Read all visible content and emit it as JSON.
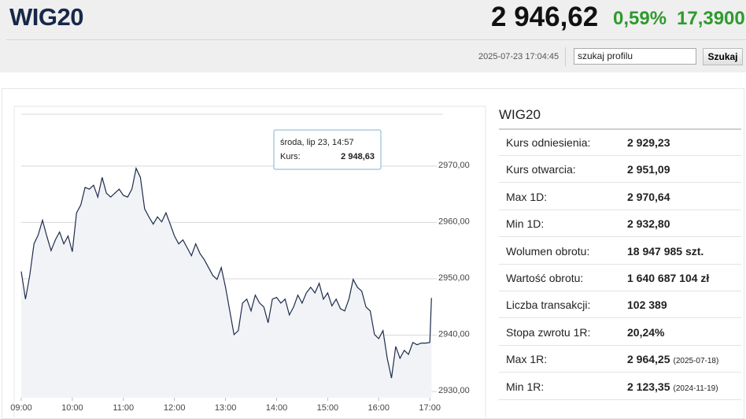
{
  "header": {
    "title": "WIG20",
    "price": "2 946,62",
    "change_pct": "0,59%",
    "change": "17,3900",
    "timestamp": "2025-07-23 17:04:45",
    "search_placeholder": "szukaj profilu",
    "search_button": "Szukaj"
  },
  "chart_data": {
    "type": "line",
    "color": "#1e2c4c",
    "area_color": "#f1f3f6",
    "grid": true,
    "x": [
      "09:00",
      "09:05",
      "09:10",
      "09:15",
      "09:20",
      "09:25",
      "09:30",
      "09:35",
      "09:40",
      "09:45",
      "09:50",
      "09:55",
      "10:00",
      "10:05",
      "10:10",
      "10:15",
      "10:20",
      "10:25",
      "10:30",
      "10:35",
      "10:40",
      "10:45",
      "10:50",
      "10:55",
      "11:00",
      "11:05",
      "11:10",
      "11:15",
      "11:20",
      "11:25",
      "11:30",
      "11:35",
      "11:40",
      "11:45",
      "11:50",
      "11:55",
      "12:00",
      "12:05",
      "12:10",
      "12:15",
      "12:20",
      "12:25",
      "12:30",
      "12:35",
      "12:40",
      "12:45",
      "12:50",
      "12:55",
      "13:00",
      "13:05",
      "13:10",
      "13:15",
      "13:20",
      "13:25",
      "13:30",
      "13:35",
      "13:40",
      "13:45",
      "13:50",
      "13:55",
      "14:00",
      "14:05",
      "14:10",
      "14:15",
      "14:20",
      "14:25",
      "14:30",
      "14:35",
      "14:40",
      "14:45",
      "14:50",
      "14:55",
      "15:00",
      "15:05",
      "15:10",
      "15:15",
      "15:20",
      "15:25",
      "15:30",
      "15:35",
      "15:40",
      "15:45",
      "15:50",
      "15:55",
      "16:00",
      "16:05",
      "16:10",
      "16:15",
      "16:20",
      "16:25",
      "16:30",
      "16:35",
      "16:40",
      "16:45",
      "16:50",
      "16:55",
      "17:00",
      "17:02"
    ],
    "values": [
      2951.3,
      2946.4,
      2950.6,
      2956.2,
      2957.8,
      2960.4,
      2957.6,
      2955.0,
      2956.9,
      2958.3,
      2956.2,
      2957.6,
      2954.8,
      2961.7,
      2963.1,
      2966.2,
      2965.9,
      2966.6,
      2964.5,
      2968.0,
      2965.2,
      2964.5,
      2965.2,
      2965.9,
      2964.8,
      2964.5,
      2965.9,
      2969.6,
      2968.0,
      2962.4,
      2961.0,
      2959.7,
      2961.0,
      2960.1,
      2961.7,
      2959.7,
      2957.6,
      2956.2,
      2956.9,
      2955.5,
      2954.1,
      2956.2,
      2954.5,
      2953.4,
      2952.0,
      2950.6,
      2949.9,
      2952.0,
      2948.5,
      2944.3,
      2940.1,
      2940.8,
      2945.7,
      2946.4,
      2944.3,
      2947.1,
      2945.7,
      2945.0,
      2942.2,
      2946.4,
      2946.7,
      2945.7,
      2946.4,
      2943.6,
      2945.0,
      2947.1,
      2945.7,
      2947.5,
      2948.5,
      2947.5,
      2949.2,
      2946.4,
      2947.5,
      2945.2,
      2946.4,
      2944.7,
      2944.3,
      2946.4,
      2949.9,
      2948.5,
      2947.8,
      2945.0,
      2944.3,
      2940.1,
      2939.4,
      2940.8,
      2935.9,
      2932.4,
      2938.0,
      2935.9,
      2937.3,
      2936.6,
      2938.7,
      2938.3,
      2938.6,
      2938.6,
      2938.7,
      2946.6
    ],
    "xlim": [
      "09:00",
      "17:10"
    ],
    "xticks": [
      "09:00",
      "10:00",
      "11:00",
      "12:00",
      "13:00",
      "14:00",
      "15:00",
      "16:00",
      "17:00"
    ],
    "ylim": [
      2928.9,
      2979.2
    ],
    "yticks": [
      {
        "value": 2930,
        "label": "2930,00"
      },
      {
        "value": 2940,
        "label": "2940,00"
      },
      {
        "value": 2950,
        "label": "2950,00"
      },
      {
        "value": 2960,
        "label": "2960,00"
      },
      {
        "value": 2970,
        "label": "2970,00"
      }
    ],
    "tooltip": {
      "title": "środa, lip 23, 14:57",
      "label": "Kurs:",
      "value": "2 948,63"
    }
  },
  "stats": {
    "title": "WIG20",
    "rows": [
      {
        "label": "Kurs odniesienia:",
        "value": "2 929,23"
      },
      {
        "label": "Kurs otwarcia:",
        "value": "2 951,09"
      },
      {
        "label": "Max 1D:",
        "value": "2 970,64"
      },
      {
        "label": "Min 1D:",
        "value": "2 932,80"
      },
      {
        "label": "Wolumen obrotu:",
        "value": "18 947 985 szt."
      },
      {
        "label": "Wartość obrotu:",
        "value": "1 640 687 104 zł"
      },
      {
        "label": "Liczba transakcji:",
        "value": "102 389"
      },
      {
        "label": "Stopa zwrotu 1R:",
        "value": "20,24%"
      },
      {
        "label": "Max 1R:",
        "value": "2 964,25",
        "date": "(2025-07-18)"
      },
      {
        "label": "Min 1R:",
        "value": "2 123,35",
        "date": "(2024-11-19)"
      }
    ]
  }
}
